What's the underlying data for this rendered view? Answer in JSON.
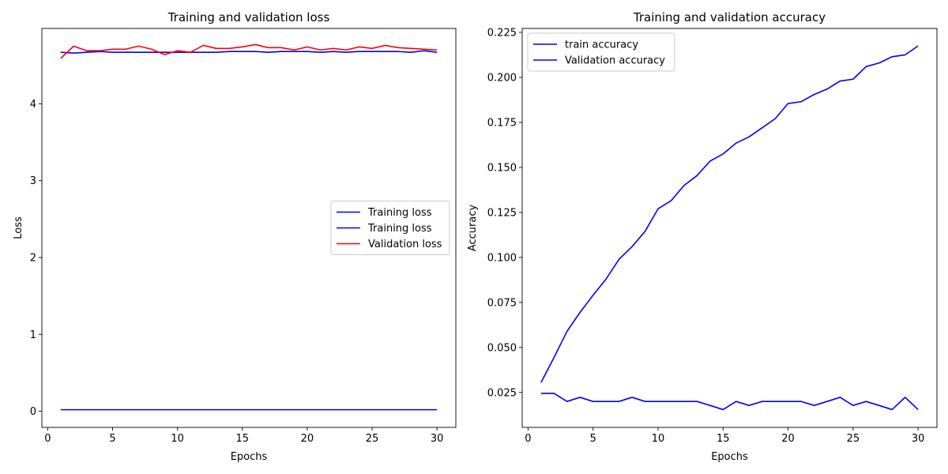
{
  "chart_data": [
    {
      "type": "line",
      "title": "Training and validation loss",
      "xlabel": "Epochs",
      "ylabel": "Loss",
      "xlim": [
        -0.45,
        31.45
      ],
      "ylim": [
        -0.21,
        4.98
      ],
      "xticks": [
        0,
        5,
        10,
        15,
        20,
        25,
        30
      ],
      "yticks": [
        0,
        1,
        2,
        3,
        4
      ],
      "ytick_labels": [
        "0",
        "1",
        "2",
        "3",
        "4"
      ],
      "grid": false,
      "legend_position": "center-right",
      "x": [
        1,
        2,
        3,
        4,
        5,
        6,
        7,
        8,
        9,
        10,
        11,
        12,
        13,
        14,
        15,
        16,
        17,
        18,
        19,
        20,
        21,
        22,
        23,
        24,
        25,
        26,
        27,
        28,
        29,
        30
      ],
      "series": [
        {
          "name": "Training loss",
          "color": "#0000ff",
          "values": [
            4.67,
            4.66,
            4.67,
            4.68,
            4.67,
            4.67,
            4.67,
            4.67,
            4.67,
            4.67,
            4.67,
            4.67,
            4.67,
            4.68,
            4.68,
            4.68,
            4.67,
            4.68,
            4.68,
            4.68,
            4.67,
            4.68,
            4.67,
            4.68,
            4.68,
            4.68,
            4.68,
            4.67,
            4.69,
            4.67
          ]
        },
        {
          "name": "Training loss",
          "color": "#0000ff",
          "values": [
            0.02,
            0.02,
            0.02,
            0.02,
            0.02,
            0.02,
            0.02,
            0.02,
            0.02,
            0.02,
            0.02,
            0.02,
            0.02,
            0.02,
            0.02,
            0.02,
            0.02,
            0.02,
            0.02,
            0.02,
            0.02,
            0.02,
            0.02,
            0.02,
            0.02,
            0.02,
            0.02,
            0.02,
            0.02,
            0.02
          ]
        },
        {
          "name": "Validation loss",
          "color": "#ff0000",
          "values": [
            4.59,
            4.75,
            4.69,
            4.69,
            4.71,
            4.71,
            4.75,
            4.71,
            4.64,
            4.69,
            4.67,
            4.76,
            4.72,
            4.72,
            4.74,
            4.77,
            4.73,
            4.73,
            4.7,
            4.74,
            4.7,
            4.72,
            4.7,
            4.74,
            4.72,
            4.76,
            4.73,
            4.72,
            4.71,
            4.7
          ]
        }
      ]
    },
    {
      "type": "line",
      "title": "Training and validation accuracy",
      "xlabel": "Epochs",
      "ylabel": "Accuracy",
      "xlim": [
        -0.45,
        31.45
      ],
      "ylim": [
        0.0056,
        0.2272
      ],
      "xticks": [
        0,
        5,
        10,
        15,
        20,
        25,
        30
      ],
      "yticks": [
        0.025,
        0.05,
        0.075,
        0.1,
        0.125,
        0.15,
        0.175,
        0.2,
        0.225
      ],
      "ytick_labels": [
        "0.025",
        "0.050",
        "0.075",
        "0.100",
        "0.125",
        "0.150",
        "0.175",
        "0.200",
        "0.225"
      ],
      "grid": false,
      "legend_position": "top-left",
      "x": [
        1,
        2,
        3,
        4,
        5,
        6,
        7,
        8,
        9,
        10,
        11,
        12,
        13,
        14,
        15,
        16,
        17,
        18,
        19,
        20,
        21,
        22,
        23,
        24,
        25,
        26,
        27,
        28,
        29,
        30
      ],
      "series": [
        {
          "name": "train accuracy",
          "color": "#0000ff",
          "values": [
            0.0305,
            0.0445,
            0.059,
            0.0695,
            0.079,
            0.088,
            0.099,
            0.106,
            0.1145,
            0.127,
            0.1315,
            0.14,
            0.1455,
            0.1535,
            0.1575,
            0.1635,
            0.167,
            0.172,
            0.177,
            0.1855,
            0.1865,
            0.1905,
            0.1935,
            0.198,
            0.199,
            0.206,
            0.208,
            0.2115,
            0.2125,
            0.2175
          ]
        },
        {
          "name": "Validation accuracy",
          "color": "#0000ff",
          "values": [
            0.0245,
            0.0245,
            0.02,
            0.0223,
            0.02,
            0.02,
            0.02,
            0.0223,
            0.02,
            0.02,
            0.02,
            0.02,
            0.02,
            0.0178,
            0.0155,
            0.02,
            0.0178,
            0.02,
            0.02,
            0.02,
            0.02,
            0.0178,
            0.02,
            0.0223,
            0.0178,
            0.02,
            0.0178,
            0.0155,
            0.0223,
            0.0155
          ]
        }
      ]
    }
  ]
}
